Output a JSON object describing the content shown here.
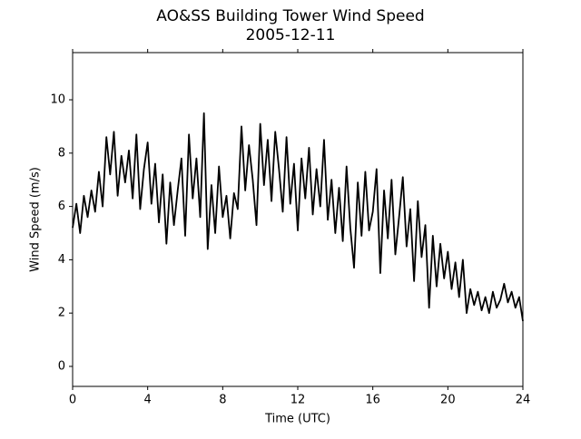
{
  "chart_data": {
    "type": "line",
    "title": "AO&SS Building Tower Wind Speed",
    "subtitle": "2005-12-11",
    "x_label": "Time (UTC)",
    "y_label": "Wind Speed (m/s)",
    "x": [
      0,
      0.2,
      0.4,
      0.6,
      0.8,
      1,
      1.2,
      1.4,
      1.6,
      1.8,
      2,
      2.2,
      2.4,
      2.6,
      2.8,
      3,
      3.2,
      3.4,
      3.6,
      3.8,
      4,
      4.2,
      4.4,
      4.6,
      4.8,
      5,
      5.2,
      5.4,
      5.6,
      5.8,
      6,
      6.2,
      6.4,
      6.6,
      6.8,
      7,
      7.2,
      7.4,
      7.6,
      7.8,
      8,
      8.2,
      8.4,
      8.6,
      8.8,
      9,
      9.2,
      9.4,
      9.6,
      9.8,
      10,
      10.2,
      10.4,
      10.6,
      10.8,
      11,
      11.2,
      11.4,
      11.6,
      11.8,
      12,
      12.2,
      12.4,
      12.6,
      12.8,
      13,
      13.2,
      13.4,
      13.6,
      13.8,
      14,
      14.2,
      14.4,
      14.6,
      14.8,
      15,
      15.2,
      15.4,
      15.6,
      15.8,
      16,
      16.2,
      16.4,
      16.6,
      16.8,
      17,
      17.2,
      17.4,
      17.6,
      17.8,
      18,
      18.2,
      18.4,
      18.6,
      18.8,
      19,
      19.2,
      19.4,
      19.6,
      19.8,
      20,
      20.2,
      20.4,
      20.6,
      20.8,
      21,
      21.2,
      21.4,
      21.6,
      21.8,
      22,
      22.2,
      22.4,
      22.6,
      22.8,
      23,
      23.2,
      23.4,
      23.6,
      23.8,
      24
    ],
    "series": [
      {
        "color": "#000000",
        "values": [
          5.2,
          6.1,
          5.0,
          6.4,
          5.6,
          6.6,
          5.8,
          7.3,
          6.0,
          8.6,
          7.2,
          8.8,
          6.4,
          7.9,
          6.9,
          8.1,
          6.3,
          8.7,
          5.9,
          7.4,
          8.4,
          6.1,
          7.6,
          5.4,
          7.2,
          4.6,
          6.9,
          5.3,
          6.6,
          7.8,
          4.9,
          8.7,
          6.3,
          7.8,
          5.6,
          9.5,
          4.4,
          6.8,
          5.0,
          7.5,
          5.6,
          6.4,
          4.8,
          6.5,
          5.9,
          9.0,
          6.6,
          8.3,
          7.0,
          5.3,
          9.1,
          6.8,
          8.5,
          6.2,
          8.8,
          7.4,
          5.8,
          8.6,
          6.1,
          7.6,
          5.1,
          7.8,
          6.3,
          8.2,
          5.7,
          7.4,
          6.0,
          8.5,
          5.5,
          7.0,
          5.0,
          6.7,
          4.7,
          7.5,
          5.2,
          3.7,
          6.9,
          4.9,
          7.3,
          5.1,
          5.8,
          7.4,
          3.5,
          6.6,
          4.8,
          7.0,
          4.2,
          5.6,
          7.1,
          4.5,
          5.9,
          3.2,
          6.2,
          4.1,
          5.3,
          2.2,
          4.9,
          3.0,
          4.6,
          3.3,
          4.3,
          2.9,
          3.9,
          2.6,
          4.0,
          2.0,
          2.9,
          2.3,
          2.8,
          2.1,
          2.6,
          2.0,
          2.8,
          2.2,
          2.5,
          3.1,
          2.4,
          2.8,
          2.2,
          2.6,
          1.7
        ]
      }
    ],
    "xlim": [
      0,
      24
    ],
    "xticks": [
      0,
      4,
      8,
      12,
      16,
      20,
      24
    ],
    "ylim": [
      -0.75,
      11.77
    ],
    "yticks": [
      0,
      2,
      4,
      6,
      8,
      10
    ]
  }
}
